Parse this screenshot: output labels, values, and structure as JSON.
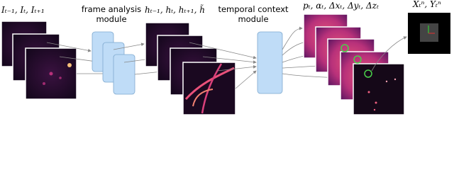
{
  "inputs": {
    "label": "Iₜ₋₁, Iₜ, Iₜ₊₁"
  },
  "frame_module": {
    "label_line1": "frame analysis",
    "label_line2": "module"
  },
  "features": {
    "label": "hₜ₋₁, hₜ, hₜ₊₁, h̃"
  },
  "temporal_module": {
    "label_line1": "temporal context",
    "label_line2": "module"
  },
  "outputs": {
    "label": "pₜ, αₜ, Δxₜ, Δyₜ, Δzₜ"
  },
  "result": {
    "label": "Xₜⁿ, Yₜⁿ"
  }
}
